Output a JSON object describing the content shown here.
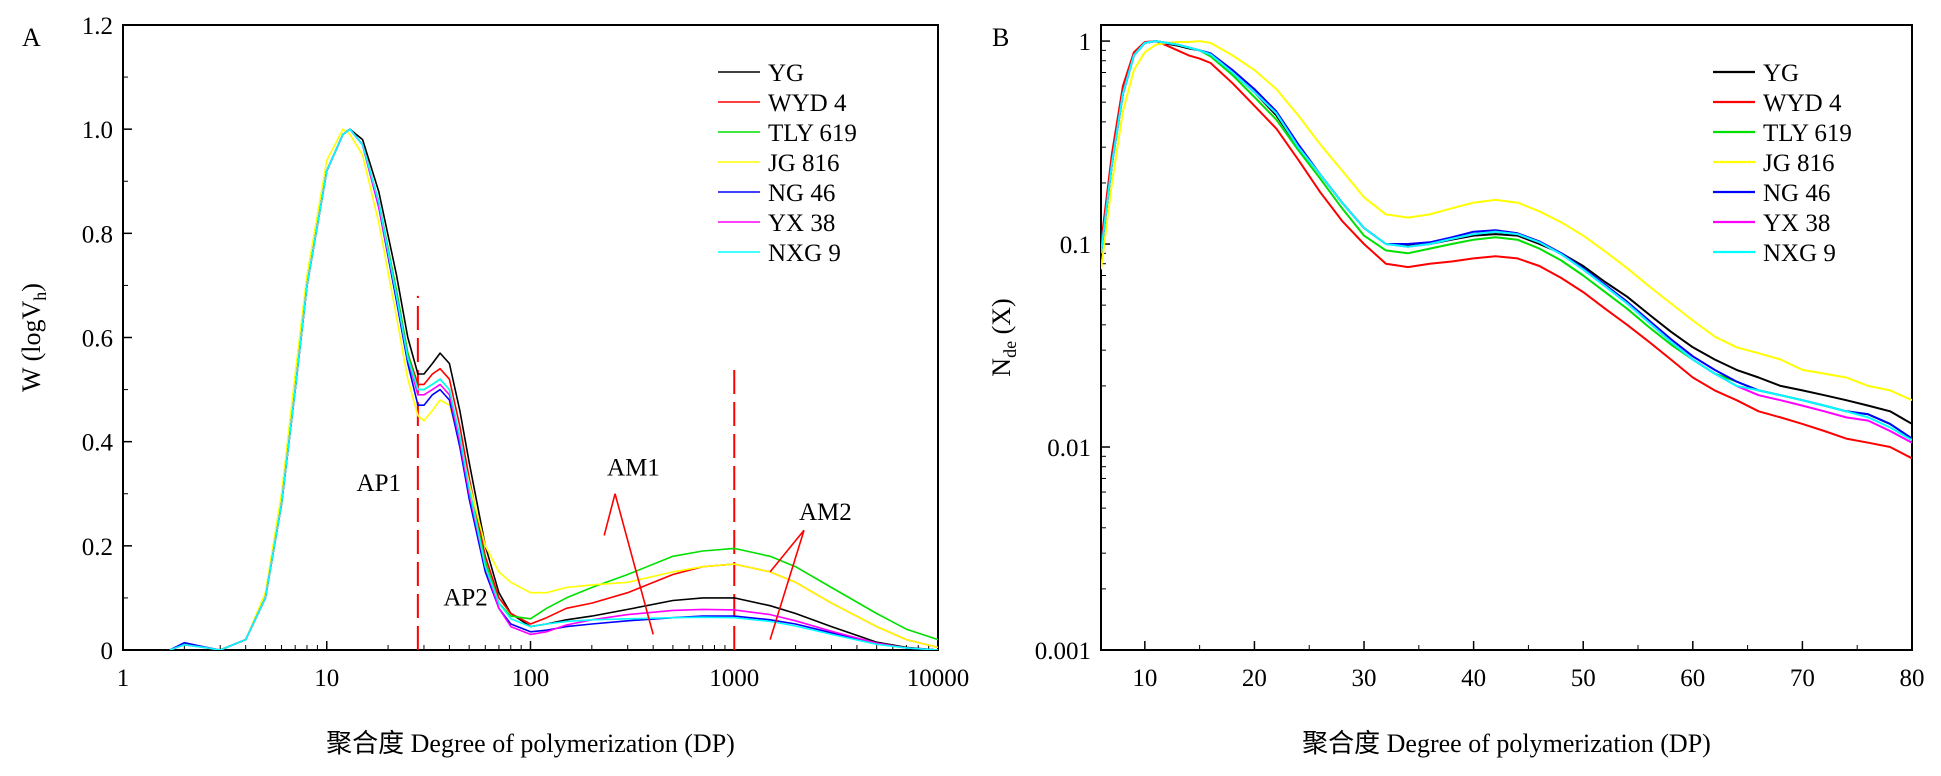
{
  "colors": {
    "YG": "#000000",
    "WYD 4": "#ff0000",
    "TLY 619": "#00e000",
    "JG 816": "#ffff00",
    "NG 46": "#0000ff",
    "YX 38": "#ff00ff",
    "NXG 9": "#00ffff",
    "annotation": "#ff0000"
  },
  "chart_data": [
    {
      "panel_label": "A",
      "type": "line",
      "xscale": "log",
      "xlim": [
        1,
        10000
      ],
      "ylim": [
        0,
        1.2
      ],
      "xlabel": "聚合度 Degree of polymerization (DP)",
      "ylabel": "W (logV",
      "ylabel_sub": "h",
      "ylabel_end": ")",
      "xticks": [
        {
          "value": 1,
          "label": "1"
        },
        {
          "value": 10,
          "label": "10"
        },
        {
          "value": 100,
          "label": "100"
        },
        {
          "value": 1000,
          "label": "1000"
        },
        {
          "value": 10000,
          "label": "10000"
        }
      ],
      "yticks": [
        {
          "value": 0,
          "label": "0"
        },
        {
          "value": 0.2,
          "label": "0.2"
        },
        {
          "value": 0.4,
          "label": "0.4"
        },
        {
          "value": 0.6,
          "label": "0.6"
        },
        {
          "value": 0.8,
          "label": "0.8"
        },
        {
          "value": 1.0,
          "label": "1.0"
        },
        {
          "value": 1.2,
          "label": "1.2"
        }
      ],
      "grid": false,
      "legend_position": "top-right",
      "x": [
        1.7,
        2,
        2.5,
        3,
        4,
        5,
        6,
        7,
        8,
        10,
        12,
        13,
        15,
        18,
        22,
        25,
        28,
        30,
        33,
        36,
        40,
        45,
        50,
        60,
        70,
        80,
        100,
        120,
        150,
        200,
        300,
        500,
        700,
        1000,
        1500,
        2000,
        3000,
        5000,
        7000,
        10000
      ],
      "series": [
        {
          "name": "YG",
          "values": [
            0,
            0.012,
            0.005,
            0,
            0.02,
            0.1,
            0.28,
            0.5,
            0.7,
            0.92,
            0.99,
            1.0,
            0.98,
            0.88,
            0.72,
            0.6,
            0.53,
            0.53,
            0.55,
            0.57,
            0.55,
            0.46,
            0.36,
            0.2,
            0.11,
            0.07,
            0.045,
            0.05,
            0.058,
            0.065,
            0.078,
            0.095,
            0.1,
            0.1,
            0.085,
            0.07,
            0.045,
            0.015,
            0.005,
            0
          ]
        },
        {
          "name": "WYD 4",
          "values": [
            0,
            0.012,
            0.005,
            0,
            0.02,
            0.1,
            0.28,
            0.5,
            0.7,
            0.92,
            0.99,
            1.0,
            0.97,
            0.86,
            0.69,
            0.57,
            0.51,
            0.51,
            0.53,
            0.54,
            0.52,
            0.43,
            0.33,
            0.18,
            0.1,
            0.07,
            0.05,
            0.062,
            0.08,
            0.09,
            0.11,
            0.145,
            0.16,
            0.165,
            0.15,
            0.13,
            0.09,
            0.045,
            0.02,
            0.005
          ]
        },
        {
          "name": "TLY 619",
          "values": [
            0,
            0.012,
            0.005,
            0,
            0.02,
            0.1,
            0.28,
            0.5,
            0.7,
            0.92,
            0.99,
            1.0,
            0.97,
            0.86,
            0.69,
            0.57,
            0.5,
            0.5,
            0.51,
            0.52,
            0.5,
            0.41,
            0.31,
            0.17,
            0.09,
            0.065,
            0.06,
            0.08,
            0.1,
            0.12,
            0.145,
            0.18,
            0.19,
            0.195,
            0.18,
            0.16,
            0.12,
            0.07,
            0.04,
            0.02
          ]
        },
        {
          "name": "JG 816",
          "values": [
            0,
            0.01,
            0.005,
            0,
            0.02,
            0.11,
            0.3,
            0.53,
            0.72,
            0.94,
            1.0,
            0.99,
            0.95,
            0.82,
            0.64,
            0.52,
            0.45,
            0.44,
            0.46,
            0.48,
            0.47,
            0.4,
            0.32,
            0.2,
            0.15,
            0.13,
            0.11,
            0.11,
            0.12,
            0.125,
            0.13,
            0.15,
            0.16,
            0.165,
            0.15,
            0.13,
            0.09,
            0.045,
            0.02,
            0.005
          ]
        },
        {
          "name": "NG 46",
          "values": [
            0,
            0.014,
            0.006,
            0,
            0.02,
            0.1,
            0.28,
            0.5,
            0.7,
            0.92,
            0.99,
            1.0,
            0.97,
            0.85,
            0.67,
            0.55,
            0.47,
            0.47,
            0.49,
            0.5,
            0.48,
            0.39,
            0.29,
            0.15,
            0.08,
            0.05,
            0.035,
            0.038,
            0.045,
            0.05,
            0.056,
            0.062,
            0.065,
            0.065,
            0.058,
            0.05,
            0.033,
            0.012,
            0.004,
            0
          ]
        },
        {
          "name": "YX 38",
          "values": [
            0,
            0.01,
            0.005,
            0,
            0.02,
            0.1,
            0.28,
            0.5,
            0.7,
            0.92,
            0.99,
            1.0,
            0.97,
            0.85,
            0.68,
            0.56,
            0.49,
            0.49,
            0.5,
            0.51,
            0.49,
            0.4,
            0.3,
            0.16,
            0.08,
            0.045,
            0.03,
            0.035,
            0.048,
            0.058,
            0.068,
            0.076,
            0.078,
            0.077,
            0.068,
            0.056,
            0.036,
            0.013,
            0.004,
            0
          ]
        },
        {
          "name": "NXG 9",
          "values": [
            0,
            0.01,
            0.005,
            0,
            0.02,
            0.1,
            0.28,
            0.5,
            0.7,
            0.92,
            0.99,
            1.0,
            0.97,
            0.86,
            0.68,
            0.56,
            0.5,
            0.5,
            0.51,
            0.52,
            0.5,
            0.41,
            0.31,
            0.16,
            0.09,
            0.06,
            0.045,
            0.05,
            0.055,
            0.058,
            0.06,
            0.062,
            0.063,
            0.062,
            0.055,
            0.046,
            0.03,
            0.011,
            0.004,
            0
          ]
        }
      ],
      "reference_lines": [
        {
          "x": 28,
          "y_from": 0,
          "y_to": 0.68
        },
        {
          "x": 1000,
          "y_from": 0,
          "y_to": 0.55
        }
      ],
      "annotations": [
        {
          "text": "AP1",
          "x": 18,
          "y": 0.305
        },
        {
          "text": "AP2",
          "x": 48,
          "y": 0.085
        },
        {
          "text": "AM1",
          "x": 320,
          "y": 0.335
        },
        {
          "text": "AM2",
          "x": 2800,
          "y": 0.25
        }
      ],
      "arrows": [
        {
          "from": [
            400,
            0.03
          ],
          "to": [
            260,
            0.3
          ]
        },
        {
          "from": [
            230,
            0.22
          ],
          "to": [
            260,
            0.3
          ]
        },
        {
          "from": [
            1500,
            0.02
          ],
          "to": [
            2200,
            0.23
          ]
        },
        {
          "from": [
            1500,
            0.15
          ],
          "to": [
            2200,
            0.23
          ]
        }
      ]
    },
    {
      "panel_label": "B",
      "type": "line",
      "yscale": "log",
      "xlim": [
        6,
        80
      ],
      "ylim": [
        0.001,
        1.2
      ],
      "xlabel": "聚合度 Degree of polymerization (DP)",
      "ylabel": "N",
      "ylabel_sub": "de",
      "ylabel_end": " (X)",
      "xticks": [
        {
          "value": 10,
          "label": "10"
        },
        {
          "value": 20,
          "label": "20"
        },
        {
          "value": 30,
          "label": "30"
        },
        {
          "value": 40,
          "label": "40"
        },
        {
          "value": 50,
          "label": "50"
        },
        {
          "value": 60,
          "label": "60"
        },
        {
          "value": 70,
          "label": "70"
        },
        {
          "value": 80,
          "label": "80"
        }
      ],
      "yticks": [
        {
          "value": 0.001,
          "label": "0.001"
        },
        {
          "value": 0.01,
          "label": "0.01"
        },
        {
          "value": 0.1,
          "label": "0.1"
        },
        {
          "value": 1,
          "label": "1"
        }
      ],
      "grid": false,
      "legend_position": "top-right",
      "x": [
        6,
        7,
        8,
        9,
        10,
        11,
        12,
        13,
        14,
        15,
        16,
        18,
        20,
        22,
        24,
        26,
        28,
        30,
        32,
        34,
        36,
        38,
        40,
        42,
        44,
        46,
        48,
        50,
        52,
        54,
        56,
        58,
        60,
        62,
        64,
        66,
        68,
        70,
        72,
        74,
        76,
        78,
        80
      ],
      "series": [
        {
          "name": "YG",
          "values": [
            0.09,
            0.25,
            0.55,
            0.85,
            0.98,
            1.0,
            0.97,
            0.95,
            0.92,
            0.9,
            0.85,
            0.7,
            0.56,
            0.43,
            0.3,
            0.22,
            0.16,
            0.12,
            0.1,
            0.098,
            0.1,
            0.105,
            0.11,
            0.112,
            0.11,
            0.1,
            0.09,
            0.078,
            0.065,
            0.055,
            0.045,
            0.037,
            0.031,
            0.027,
            0.024,
            0.022,
            0.02,
            0.019,
            0.018,
            0.017,
            0.016,
            0.015,
            0.013
          ]
        },
        {
          "name": "WYD 4",
          "values": [
            0.1,
            0.28,
            0.6,
            0.88,
            0.99,
            1.0,
            0.95,
            0.9,
            0.85,
            0.82,
            0.78,
            0.62,
            0.48,
            0.37,
            0.26,
            0.18,
            0.13,
            0.1,
            0.08,
            0.077,
            0.08,
            0.082,
            0.085,
            0.087,
            0.085,
            0.078,
            0.068,
            0.058,
            0.048,
            0.04,
            0.033,
            0.027,
            0.022,
            0.019,
            0.017,
            0.015,
            0.014,
            0.013,
            0.012,
            0.011,
            0.0105,
            0.01,
            0.0088
          ]
        },
        {
          "name": "TLY 619",
          "values": [
            0.09,
            0.25,
            0.55,
            0.85,
            0.98,
            1.0,
            0.98,
            0.96,
            0.93,
            0.9,
            0.84,
            0.68,
            0.53,
            0.41,
            0.29,
            0.21,
            0.15,
            0.11,
            0.093,
            0.09,
            0.095,
            0.1,
            0.105,
            0.108,
            0.105,
            0.095,
            0.083,
            0.07,
            0.058,
            0.048,
            0.039,
            0.032,
            0.027,
            0.023,
            0.021,
            0.019,
            0.018,
            0.017,
            0.016,
            0.015,
            0.0145,
            0.013,
            0.011
          ]
        },
        {
          "name": "JG 816",
          "values": [
            0.075,
            0.2,
            0.45,
            0.72,
            0.88,
            0.96,
            0.98,
            0.99,
            0.99,
            1.0,
            0.98,
            0.85,
            0.72,
            0.58,
            0.43,
            0.31,
            0.23,
            0.17,
            0.14,
            0.135,
            0.14,
            0.15,
            0.16,
            0.165,
            0.16,
            0.145,
            0.128,
            0.11,
            0.092,
            0.076,
            0.062,
            0.051,
            0.042,
            0.035,
            0.031,
            0.029,
            0.027,
            0.024,
            0.023,
            0.022,
            0.02,
            0.019,
            0.017
          ]
        },
        {
          "name": "NG 46",
          "values": [
            0.09,
            0.25,
            0.55,
            0.85,
            0.98,
            1.0,
            0.98,
            0.96,
            0.93,
            0.9,
            0.87,
            0.72,
            0.58,
            0.45,
            0.31,
            0.22,
            0.16,
            0.12,
            0.1,
            0.1,
            0.102,
            0.108,
            0.115,
            0.117,
            0.113,
            0.103,
            0.09,
            0.076,
            0.063,
            0.052,
            0.042,
            0.034,
            0.028,
            0.024,
            0.021,
            0.019,
            0.018,
            0.017,
            0.016,
            0.015,
            0.0145,
            0.013,
            0.011
          ]
        },
        {
          "name": "YX 38",
          "values": [
            0.09,
            0.25,
            0.55,
            0.85,
            0.98,
            1.0,
            0.98,
            0.96,
            0.93,
            0.9,
            0.86,
            0.7,
            0.56,
            0.44,
            0.3,
            0.22,
            0.16,
            0.12,
            0.1,
            0.097,
            0.1,
            0.106,
            0.112,
            0.115,
            0.112,
            0.102,
            0.089,
            0.075,
            0.062,
            0.051,
            0.041,
            0.033,
            0.027,
            0.023,
            0.02,
            0.018,
            0.017,
            0.016,
            0.015,
            0.014,
            0.0135,
            0.012,
            0.0105
          ]
        },
        {
          "name": "NXG 9",
          "values": [
            0.09,
            0.25,
            0.55,
            0.85,
            0.98,
            1.0,
            0.98,
            0.96,
            0.93,
            0.9,
            0.86,
            0.7,
            0.56,
            0.44,
            0.3,
            0.22,
            0.16,
            0.12,
            0.1,
            0.097,
            0.1,
            0.106,
            0.112,
            0.115,
            0.112,
            0.102,
            0.089,
            0.075,
            0.062,
            0.051,
            0.041,
            0.033,
            0.027,
            0.023,
            0.02,
            0.019,
            0.018,
            0.017,
            0.016,
            0.015,
            0.014,
            0.0125,
            0.0108
          ]
        }
      ]
    }
  ]
}
